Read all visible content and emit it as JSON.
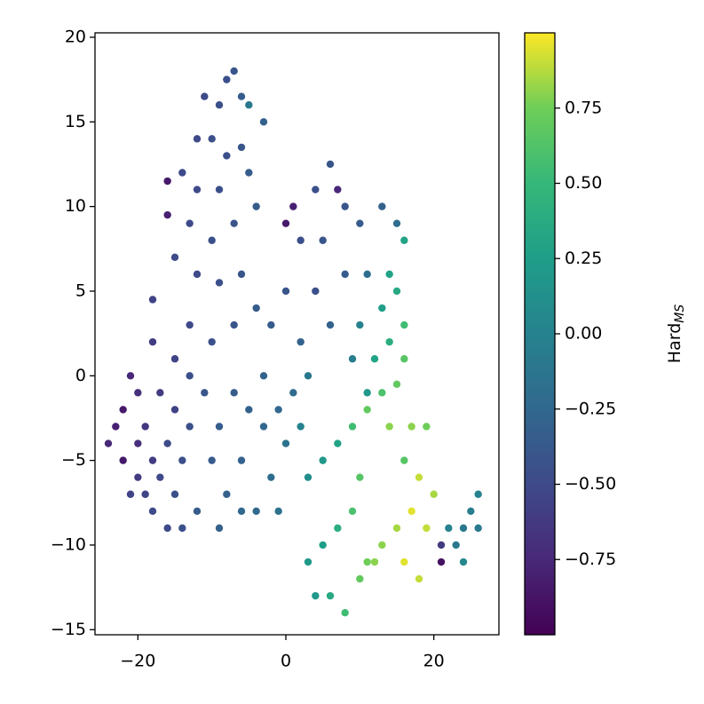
{
  "chart_data": {
    "type": "scatter",
    "x": [
      -8,
      -7,
      -9,
      -6,
      -5,
      -11,
      -12,
      -10,
      -8,
      -6,
      -14,
      -16,
      -16,
      -12,
      -9,
      -5,
      -3,
      -13,
      -10,
      -7,
      -15,
      -12,
      -9,
      -6,
      -18,
      -13,
      -10,
      -7,
      -4,
      -4,
      0,
      1,
      6,
      7,
      4,
      2,
      5,
      8,
      10,
      13,
      15,
      16,
      14,
      11,
      8,
      4,
      0,
      -2,
      2,
      6,
      10,
      13,
      15,
      16,
      14,
      12,
      9,
      16,
      15,
      11,
      -22,
      -23,
      -22,
      -24,
      -21,
      -20,
      -19,
      -18,
      -20,
      -21,
      -18,
      -16,
      -15,
      -17,
      -15,
      -16,
      -14,
      -13,
      -15,
      -18,
      -14,
      -20,
      -19,
      -17,
      -13,
      -11,
      -9,
      -7,
      -5,
      -3,
      -1,
      1,
      3,
      -10,
      -8,
      -6,
      -4,
      -2,
      0,
      2,
      -12,
      -9,
      -6,
      -1,
      -3,
      3,
      5,
      7,
      9,
      11,
      13,
      14,
      17,
      19,
      16,
      18,
      20,
      19,
      17,
      15,
      13,
      11,
      9,
      7,
      5,
      3,
      4,
      6,
      8,
      10,
      12,
      16,
      18,
      21,
      10,
      22,
      23,
      24,
      25,
      26,
      26,
      24,
      21
    ],
    "y": [
      17.5,
      18,
      16,
      16.5,
      16,
      16.5,
      14,
      14,
      13,
      13.5,
      12,
      11.5,
      9.5,
      11,
      11,
      12,
      15,
      9,
      8,
      9,
      7,
      6,
      5.5,
      6,
      4.5,
      3,
      2,
      3,
      10,
      4,
      9,
      10,
      12.5,
      11,
      11,
      8,
      8,
      10,
      9,
      10,
      9,
      8,
      6,
      6,
      6,
      5,
      5,
      3,
      2,
      3,
      3,
      4,
      5,
      3,
      2,
      1,
      1,
      1,
      -0.5,
      -1,
      -2,
      -3,
      -5,
      -4,
      0,
      -1,
      -3,
      -5,
      -6,
      -7,
      -8,
      -9,
      -7,
      -1,
      -2,
      -4,
      -5,
      -3,
      1,
      2,
      -9,
      -4,
      -7,
      -6,
      0,
      -1,
      -3,
      -1,
      -2,
      0,
      -2,
      -1,
      0,
      -5,
      -7,
      -5,
      -8,
      -6,
      -4,
      -3,
      -8,
      -9,
      -8,
      -8,
      -3,
      -6,
      -5,
      -4,
      -3,
      -2,
      -1,
      -3,
      -3,
      -3,
      -5,
      -6,
      -7,
      -9,
      -8,
      -9,
      -10,
      -11,
      -8,
      -9,
      -10,
      -11,
      -13,
      -13,
      -14,
      -12,
      -11,
      -11,
      -12,
      -11,
      -6,
      -9,
      -10,
      -9,
      -8,
      -7,
      -9,
      -11,
      -10
    ],
    "c": [
      -0.45,
      -0.4,
      -0.45,
      -0.35,
      -0.1,
      -0.5,
      -0.5,
      -0.45,
      -0.45,
      -0.4,
      -0.5,
      -0.85,
      -0.8,
      -0.5,
      -0.45,
      -0.35,
      -0.3,
      -0.5,
      -0.45,
      -0.4,
      -0.5,
      -0.5,
      -0.45,
      -0.4,
      -0.55,
      -0.5,
      -0.45,
      -0.4,
      -0.35,
      -0.35,
      -0.85,
      -0.8,
      -0.4,
      -0.75,
      -0.45,
      -0.45,
      -0.4,
      -0.4,
      -0.35,
      -0.3,
      -0.2,
      0.3,
      0.3,
      -0.2,
      -0.35,
      -0.45,
      -0.4,
      -0.35,
      -0.3,
      -0.3,
      0,
      0.25,
      0.35,
      0.55,
      0.4,
      0.3,
      -0.05,
      0.65,
      0.7,
      0.2,
      -0.85,
      -0.8,
      -0.85,
      -0.75,
      -0.75,
      -0.7,
      -0.65,
      -0.6,
      -0.6,
      -0.55,
      -0.5,
      -0.5,
      -0.45,
      -0.6,
      -0.55,
      -0.5,
      -0.45,
      -0.45,
      -0.55,
      -0.6,
      -0.45,
      -0.7,
      -0.55,
      -0.5,
      -0.45,
      -0.4,
      -0.35,
      -0.35,
      -0.3,
      -0.3,
      -0.25,
      -0.2,
      -0.1,
      -0.35,
      -0.3,
      -0.3,
      -0.25,
      -0.2,
      -0.15,
      0,
      -0.35,
      -0.3,
      -0.25,
      -0.15,
      -0.25,
      0.1,
      0.2,
      0.3,
      0.55,
      0.7,
      0.6,
      0.8,
      0.8,
      0.75,
      0.65,
      0.9,
      0.85,
      0.9,
      0.95,
      0.85,
      0.8,
      0.75,
      0.6,
      0.4,
      0.25,
      0.2,
      0.2,
      0.35,
      0.55,
      0.7,
      0.8,
      0.95,
      0.9,
      -0.9,
      0.65,
      0,
      -0.1,
      -0.1,
      -0.05,
      0,
      -0.1,
      0.05,
      -0.6
    ],
    "colormap": "viridis",
    "xlim": [
      -25.8,
      28.8
    ],
    "ylim": [
      -15.3,
      20.26
    ],
    "xticks": [
      {
        "value": -20,
        "label": "−20"
      },
      0,
      20
    ],
    "yticks": [
      {
        "value": -15,
        "label": "−15"
      },
      {
        "value": -10,
        "label": "−10"
      },
      {
        "value": -5,
        "label": "−5"
      },
      0,
      5,
      10,
      15,
      20
    ],
    "colorbar": {
      "label": "Hard",
      "label_sub": "MS",
      "clim": [
        -1,
        1
      ],
      "ticks": [
        {
          "value": -0.75,
          "label": "−0.75"
        },
        {
          "value": -0.5,
          "label": "−0.50"
        },
        {
          "value": -0.25,
          "label": "−0.25"
        },
        {
          "value": 0,
          "label": "0.00"
        },
        0.25,
        {
          "value": 0.5,
          "label": "0.50"
        },
        0.75
      ]
    }
  }
}
